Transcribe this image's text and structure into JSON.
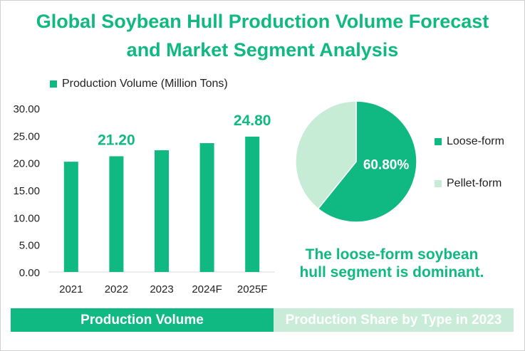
{
  "title_line1": "Global Soybean Hull Production Volume Forecast",
  "title_line2": "and Market Segment Analysis",
  "note_line1": "The loose-form soybean",
  "note_line2": "hull segment is dominant.",
  "footer": {
    "left_label": "Production Volume",
    "right_label": "Production Share by Type in 2023"
  },
  "colors": {
    "accent": "#10b981",
    "light": "#c8ecd7",
    "pale": "#c7ecd6"
  },
  "chart_data": [
    {
      "type": "bar",
      "categories": [
        "2021",
        "2022",
        "2023",
        "2024F",
        "2025F"
      ],
      "series": [
        {
          "name": "Production Volume (Million Tons)",
          "values": [
            20.2,
            21.2,
            22.3,
            23.6,
            24.8
          ]
        }
      ],
      "data_labels": [
        {
          "index": 1,
          "text": "21.20"
        },
        {
          "index": 4,
          "text": "24.80"
        }
      ],
      "ylim": [
        0,
        30
      ],
      "yticks": [
        "0.00",
        "5.00",
        "10.00",
        "15.00",
        "20.00",
        "25.00",
        "30.00"
      ],
      "grid": false,
      "legend": "top-left"
    },
    {
      "type": "pie",
      "labels": [
        "Loose-form",
        "Pellet-form"
      ],
      "values": [
        60.8,
        39.2
      ],
      "data_labels": [
        "60.80%",
        ""
      ],
      "colors": [
        "#10b981",
        "#c7ecd6"
      ],
      "legend": "right"
    }
  ]
}
